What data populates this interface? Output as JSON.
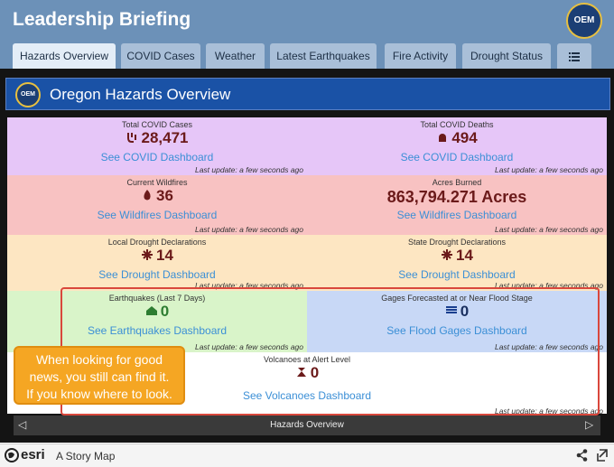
{
  "header": {
    "title": "Leadership Briefing",
    "logo": "OEM"
  },
  "tabs": [
    "Hazards Overview",
    "COVID Cases",
    "Weather",
    "Latest Earthquakes",
    "Fire Activity",
    "Drought Status"
  ],
  "panel": {
    "title": "Oregon Hazards Overview",
    "logo": "OEM"
  },
  "cells": [
    {
      "label": "Total COVID Cases",
      "value": "28,471",
      "link": "See COVID Dashboard",
      "update": "Last update: a few seconds ago"
    },
    {
      "label": "Total COVID Deaths",
      "value": "494",
      "link": "See COVID Dashboard",
      "update": "Last update: a few seconds ago"
    },
    {
      "label": "Current Wildfires",
      "value": "36",
      "link": "See Wildfires Dashboard",
      "update": "Last update: a few seconds ago"
    },
    {
      "label": "Acres Burned",
      "value": "863,794.271 Acres",
      "link": "See Wildfires Dashboard",
      "update": "Last update: a few seconds ago"
    },
    {
      "label": "Local Drought Declarations",
      "value": "14",
      "link": "See Drought Dashboard",
      "update": "Last update: a few seconds ago"
    },
    {
      "label": "State Drought Declarations",
      "value": "14",
      "link": "See Drought Dashboard",
      "update": "Last update: a few seconds ago"
    },
    {
      "label": "Earthquakes (Last 7 Days)",
      "value": "0",
      "link": "See Earthquakes Dashboard",
      "update": "Last update: a few seconds ago"
    },
    {
      "label": "Gages Forecasted at or Near Flood Stage",
      "value": "0",
      "link": "See Flood Gages Dashboard",
      "update": "Last update: a few seconds ago"
    },
    {
      "label": "Volcanoes at Alert Level",
      "value": "0",
      "link": "See Volcanoes Dashboard",
      "update": "Last update: a few seconds ago"
    }
  ],
  "callout": [
    "When looking for good",
    "news, you still can find it.",
    "If you know where to look."
  ],
  "nav": {
    "title": "Hazards Overview"
  },
  "footer": {
    "brand": "esri",
    "text": "A Story Map"
  }
}
